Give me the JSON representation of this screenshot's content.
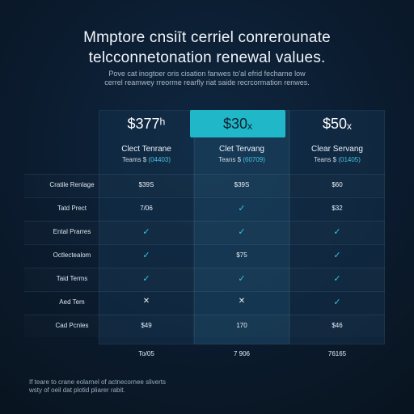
{
  "header": {
    "title_line1": "Mmptore cnsiīt cerriel conrerounate",
    "title_line2": "telcconnetonation renewal values.",
    "subtitle_line1": "Pove cat inogtoer oris cisation fanwes to'al efrid fecharne low",
    "subtitle_line2": "cerrel reamwey rreorme rearfly riat saide recrcormation renwes."
  },
  "plans": [
    {
      "price": "$377ʰ",
      "name": "Clect Tenrane",
      "sub_prefix": "Teams $ ",
      "sub_value": "(04403)",
      "featured": false
    },
    {
      "price": "$30ₓ",
      "name": "Clet Tervang",
      "sub_prefix": "Teans $ ",
      "sub_value": "(60709)",
      "featured": true
    },
    {
      "price": "$50ₓ",
      "name": "Clear Servang",
      "sub_prefix": "Teans $ ",
      "sub_value": "(01405)",
      "featured": false
    }
  ],
  "rows": [
    {
      "label": "Cratile Renlage",
      "values": [
        "$39S",
        "$39S",
        "$60"
      ]
    },
    {
      "label": "Tatd Prect",
      "values": [
        "7/06",
        "✓",
        "$32"
      ]
    },
    {
      "label": "Ental Prarres",
      "values": [
        "✓",
        "✓",
        "✓"
      ]
    },
    {
      "label": "Octlectealom",
      "values": [
        "✓",
        "$75",
        "✓"
      ]
    },
    {
      "label": "Taid Terms",
      "values": [
        "✓",
        "✓",
        "✓"
      ]
    },
    {
      "label": "Aed Tem",
      "values": [
        "✕",
        "✕",
        "✓"
      ]
    },
    {
      "label": "Cad Pcnles",
      "values": [
        "$49",
        "170",
        "$46"
      ]
    }
  ],
  "totals": {
    "label": "To/05",
    "values": [
      "7 906",
      "76165"
    ]
  },
  "footnote": {
    "line1": "If teare to crane eolarnel of actnecornee sliverts",
    "line2": "wsty of oeil dat plotid pliarer rabit."
  },
  "colors": {
    "accent": "#20b7c8",
    "check": "#34c5e6",
    "background": "#0b1b2e"
  }
}
